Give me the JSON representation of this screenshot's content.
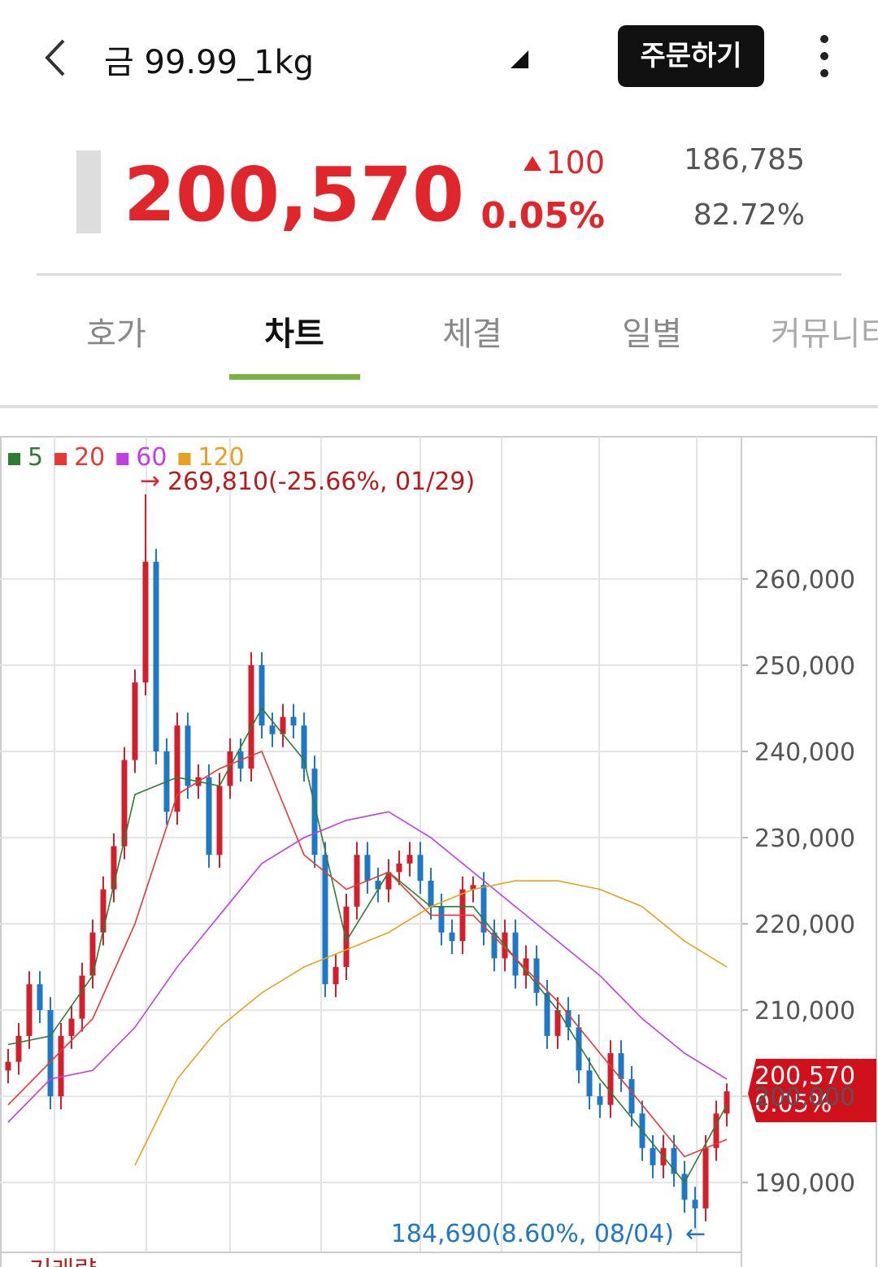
{
  "header": {
    "title": "금 99.99_1kg",
    "order_button": "주문하기"
  },
  "price": {
    "current": "200,570",
    "change": "100",
    "change_rate": "0.05%",
    "volume": "186,785",
    "ratio": "82.72%"
  },
  "tabs": [
    "호가",
    "차트",
    "체결",
    "일별",
    "커뮤니티"
  ],
  "chart_data": {
    "type": "candlestick",
    "ylim": [
      181900,
      276500
    ],
    "yticks": [
      {
        "value": 190000,
        "label": "190,000"
      },
      {
        "value": 200000,
        "label": "200,000"
      },
      {
        "value": 210000,
        "label": "210,000"
      },
      {
        "value": 220000,
        "label": "220,000"
      },
      {
        "value": 230000,
        "label": "230,000"
      },
      {
        "value": 240000,
        "label": "240,000"
      },
      {
        "value": 250000,
        "label": "250,000"
      },
      {
        "value": 260000,
        "label": "260,000"
      }
    ],
    "grid": true,
    "up_color": "#d21f2b",
    "down_color": "#1f78c6",
    "ohlc": [
      [
        203000,
        205500,
        201500,
        204000
      ],
      [
        204000,
        208500,
        202500,
        207000
      ],
      [
        207000,
        214500,
        205500,
        213000
      ],
      [
        213000,
        214500,
        208500,
        210000
      ],
      [
        210000,
        211500,
        198500,
        200000
      ],
      [
        200000,
        208500,
        198500,
        207000
      ],
      [
        207000,
        210500,
        205500,
        209000
      ],
      [
        209000,
        215500,
        207500,
        214000
      ],
      [
        214000,
        220500,
        212500,
        219000
      ],
      [
        219000,
        225500,
        217500,
        224000
      ],
      [
        224000,
        230500,
        222500,
        229000
      ],
      [
        229000,
        240500,
        227500,
        239000
      ],
      [
        239000,
        249500,
        237500,
        248000
      ],
      [
        248000,
        269810,
        246500,
        262000
      ],
      [
        262000,
        263500,
        238500,
        240000
      ],
      [
        240000,
        241500,
        231500,
        233000
      ],
      [
        233000,
        244500,
        231500,
        243000
      ],
      [
        243000,
        244500,
        234500,
        236000
      ],
      [
        236000,
        238500,
        234500,
        237000
      ],
      [
        237000,
        238500,
        226500,
        228000
      ],
      [
        228000,
        237500,
        226500,
        236000
      ],
      [
        236000,
        241500,
        234500,
        240000
      ],
      [
        240000,
        241500,
        236500,
        238000
      ],
      [
        238000,
        251500,
        236500,
        250000
      ],
      [
        250000,
        251500,
        241500,
        243000
      ],
      [
        243000,
        244500,
        240500,
        242000
      ],
      [
        242000,
        245500,
        240500,
        244000
      ],
      [
        244000,
        245500,
        241500,
        243000
      ],
      [
        243000,
        244500,
        236500,
        238000
      ],
      [
        238000,
        239500,
        226500,
        228000
      ],
      [
        228000,
        229500,
        211500,
        213000
      ],
      [
        213000,
        216500,
        211500,
        215000
      ],
      [
        215000,
        223500,
        213500,
        222000
      ],
      [
        222000,
        229500,
        220500,
        228000
      ],
      [
        228000,
        229500,
        223500,
        225000
      ],
      [
        225000,
        226500,
        222500,
        224000
      ],
      [
        224000,
        227500,
        222500,
        226000
      ],
      [
        226000,
        228500,
        224500,
        227000
      ],
      [
        227000,
        229500,
        225500,
        228000
      ],
      [
        228000,
        229500,
        223500,
        225000
      ],
      [
        225000,
        226500,
        220500,
        222000
      ],
      [
        222000,
        223500,
        217500,
        219000
      ],
      [
        219000,
        220500,
        216500,
        218000
      ],
      [
        218000,
        225500,
        216500,
        224000
      ],
      [
        224000,
        225500,
        222500,
        224500
      ],
      [
        224500,
        226000,
        217500,
        219000
      ],
      [
        219000,
        220500,
        214500,
        216000
      ],
      [
        216000,
        220500,
        214500,
        219000
      ],
      [
        219000,
        220500,
        212500,
        214000
      ],
      [
        214000,
        217500,
        212500,
        216000
      ],
      [
        216000,
        217500,
        210500,
        212000
      ],
      [
        212000,
        213500,
        205500,
        207000
      ],
      [
        207000,
        211500,
        205500,
        210000
      ],
      [
        210000,
        211500,
        206500,
        208000
      ],
      [
        208000,
        209500,
        201500,
        203000
      ],
      [
        203000,
        204500,
        198500,
        200000
      ],
      [
        200000,
        201500,
        197500,
        199000
      ],
      [
        199000,
        206500,
        197500,
        205000
      ],
      [
        205000,
        206500,
        200500,
        202000
      ],
      [
        202000,
        203500,
        196500,
        198000
      ],
      [
        198000,
        199500,
        192500,
        194000
      ],
      [
        194000,
        195500,
        190500,
        192000
      ],
      [
        192000,
        195500,
        190500,
        194000
      ],
      [
        194000,
        195500,
        189500,
        191000
      ],
      [
        191000,
        192500,
        186500,
        188000
      ],
      [
        188000,
        189500,
        184690,
        187000
      ],
      [
        187000,
        195500,
        185500,
        194000
      ],
      [
        194000,
        199500,
        192500,
        198000
      ],
      [
        198000,
        201500,
        196500,
        200570
      ]
    ],
    "series": [
      {
        "name": "5",
        "color": "#2e7d32",
        "x": [
          0,
          4,
          8,
          12,
          16,
          20,
          24,
          28,
          32,
          36,
          40,
          44,
          48,
          52,
          56,
          60,
          64,
          68
        ],
        "values": [
          206000,
          207000,
          214000,
          235000,
          237000,
          236000,
          245000,
          239000,
          218000,
          226000,
          222000,
          222000,
          216000,
          210000,
          202000,
          196000,
          190000,
          199000
        ]
      },
      {
        "name": "20",
        "color": "#e53935",
        "x": [
          0,
          4,
          8,
          12,
          16,
          20,
          24,
          28,
          32,
          36,
          40,
          44,
          48,
          52,
          56,
          60,
          64,
          68
        ],
        "values": [
          199000,
          204000,
          209000,
          220000,
          235000,
          238000,
          240000,
          228000,
          224000,
          226000,
          221000,
          221000,
          216000,
          211000,
          205000,
          199000,
          193000,
          195000
        ]
      },
      {
        "name": "60",
        "color": "#c23ee0",
        "x": [
          0,
          4,
          8,
          12,
          16,
          20,
          24,
          28,
          32,
          36,
          40,
          44,
          48,
          52,
          56,
          60,
          64,
          68
        ],
        "values": [
          197000,
          202000,
          203000,
          208000,
          215000,
          221000,
          227000,
          230000,
          232000,
          233000,
          230000,
          226000,
          222000,
          218000,
          214000,
          209000,
          205000,
          202000
        ]
      },
      {
        "name": "120",
        "color": "#e8a11c",
        "x": [
          0,
          4,
          8,
          12,
          16,
          20,
          24,
          28,
          32,
          36,
          40,
          44,
          48,
          52,
          56,
          60,
          64,
          68
        ],
        "values": [
          null,
          null,
          null,
          192000,
          202000,
          208000,
          212000,
          215000,
          217000,
          219000,
          222000,
          224000,
          225000,
          225000,
          224000,
          222000,
          218000,
          215000
        ]
      }
    ],
    "high_annotation": "269,810(-25.66%, 01/29)",
    "low_annotation": "184,690(8.60%, 08/04)",
    "last_price_label": "200,570",
    "last_change_label": "0.05%",
    "volume_label": "거래량"
  }
}
